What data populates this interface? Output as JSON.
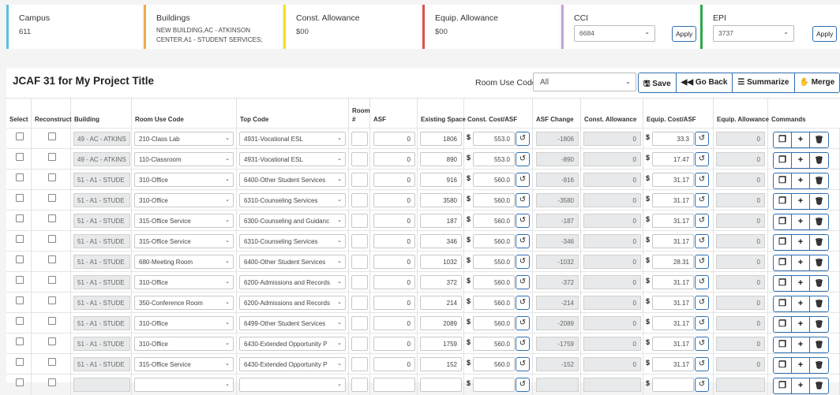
{
  "cards": {
    "campus": {
      "title": "Campus",
      "value": "611"
    },
    "buildings": {
      "title": "Buildings",
      "value": "NEW BUILDING,AC - ATKINSON CENTER,A1 - STUDENT SERVICES;"
    },
    "const_allowance": {
      "title": "Const. Allowance",
      "value": "$00"
    },
    "equip_allowance": {
      "title": "Equip. Allowance",
      "value": "$00"
    },
    "cci": {
      "title": "CCI",
      "value": "6684",
      "apply": "Apply"
    },
    "epi": {
      "title": "EPI",
      "value": "3737",
      "apply": "Apply"
    }
  },
  "colors": {
    "campus": "#5bc0de",
    "buildings": "#f0ad4e",
    "const": "#f7e017",
    "equip": "#d9534f",
    "cci": "#c7a0d8",
    "epi": "#2ea84a",
    "accent": "#2f6fb0"
  },
  "panel": {
    "title": "JCAF 31 for My Project Title",
    "room_use_label": "Room Use Code:",
    "room_use_value": "All",
    "buttons": {
      "save": "🖫 Save",
      "go_back": "◀◀ Go Back",
      "summarize": "☰ Summarize",
      "merge": "✋ Merge"
    }
  },
  "columns": {
    "select": "Select",
    "reconstruct": "Reconstruct",
    "building": "Building",
    "room_use": "Room Use Code",
    "top_code": "Top Code",
    "room_num": "Room #",
    "asf": "ASF",
    "existing": "Existing Space",
    "const_cost": "Const. Cost/ASF",
    "asf_change": "ASF Change",
    "const_allow": "Const. Allowance",
    "equip_cost": "Equip. Cost/ASF",
    "equip_allow": "Equip. Allowance",
    "commands": "Commands"
  },
  "icons": {
    "dollar": "$",
    "undo": "↺",
    "chevron": "⌄",
    "copy": "❐",
    "plus": "+",
    "delete": "🗑"
  },
  "rows": [
    {
      "building": "49 - AC - ATKINS",
      "room_use": "210-Class Lab",
      "top_code": "4931-Vocational ESL",
      "asf": "0",
      "existing": "1806",
      "const_cost": "553.0",
      "asf_change": "-1806",
      "const_allow": "0",
      "equip_cost": "33.3",
      "equip_allow": "0"
    },
    {
      "building": "49 - AC - ATKINS",
      "room_use": "110-Classroom",
      "top_code": "4931-Vocational ESL",
      "asf": "0",
      "existing": "890",
      "const_cost": "553.0",
      "asf_change": "-890",
      "const_allow": "0",
      "equip_cost": "17.47",
      "equip_allow": "0"
    },
    {
      "building": "51 - A1 - STUDE",
      "room_use": "310-Office",
      "top_code": "6400-Other Student Services",
      "asf": "0",
      "existing": "916",
      "const_cost": "560.0",
      "asf_change": "-916",
      "const_allow": "0",
      "equip_cost": "31.17",
      "equip_allow": "0"
    },
    {
      "building": "51 - A1 - STUDE",
      "room_use": "310-Office",
      "top_code": "6310-Counseling Services",
      "asf": "0",
      "existing": "3580",
      "const_cost": "560.0",
      "asf_change": "-3580",
      "const_allow": "0",
      "equip_cost": "31.17",
      "equip_allow": "0"
    },
    {
      "building": "51 - A1 - STUDE",
      "room_use": "315-Office Service",
      "top_code": "6300-Counseling and Guidanc",
      "asf": "0",
      "existing": "187",
      "const_cost": "560.0",
      "asf_change": "-187",
      "const_allow": "0",
      "equip_cost": "31.17",
      "equip_allow": "0"
    },
    {
      "building": "51 - A1 - STUDE",
      "room_use": "315-Office Service",
      "top_code": "6310-Counseling Services",
      "asf": "0",
      "existing": "346",
      "const_cost": "560.0",
      "asf_change": "-346",
      "const_allow": "0",
      "equip_cost": "31.17",
      "equip_allow": "0"
    },
    {
      "building": "51 - A1 - STUDE",
      "room_use": "680-Meeting Room",
      "top_code": "6400-Other Student Services",
      "asf": "0",
      "existing": "1032",
      "const_cost": "550.0",
      "asf_change": "-1032",
      "const_allow": "0",
      "equip_cost": "28.31",
      "equip_allow": "0"
    },
    {
      "building": "51 - A1 - STUDE",
      "room_use": "310-Office",
      "top_code": "6200-Admissions and Records",
      "asf": "0",
      "existing": "372",
      "const_cost": "560.0",
      "asf_change": "-372",
      "const_allow": "0",
      "equip_cost": "31.17",
      "equip_allow": "0"
    },
    {
      "building": "51 - A1 - STUDE",
      "room_use": "350-Conference Room",
      "top_code": "6200-Admissions and Records",
      "asf": "0",
      "existing": "214",
      "const_cost": "560.0",
      "asf_change": "-214",
      "const_allow": "0",
      "equip_cost": "31.17",
      "equip_allow": "0"
    },
    {
      "building": "51 - A1 - STUDE",
      "room_use": "310-Office",
      "top_code": "6499-Other Student Services",
      "asf": "0",
      "existing": "2089",
      "const_cost": "560.0",
      "asf_change": "-2089",
      "const_allow": "0",
      "equip_cost": "31.17",
      "equip_allow": "0"
    },
    {
      "building": "51 - A1 - STUDE",
      "room_use": "310-Office",
      "top_code": "6430-Extended Opportunity P",
      "asf": "0",
      "existing": "1759",
      "const_cost": "560.0",
      "asf_change": "-1759",
      "const_allow": "0",
      "equip_cost": "31.17",
      "equip_allow": "0"
    },
    {
      "building": "51 - A1 - STUDE",
      "room_use": "315-Office Service",
      "top_code": "6430-Extended Opportunity P",
      "asf": "0",
      "existing": "152",
      "const_cost": "560.0",
      "asf_change": "-152",
      "const_allow": "0",
      "equip_cost": "31.17",
      "equip_allow": "0"
    },
    {
      "building": "",
      "room_use": "",
      "top_code": "",
      "asf": "",
      "existing": "",
      "const_cost": "",
      "asf_change": "",
      "const_allow": "",
      "equip_cost": "",
      "equip_allow": ""
    }
  ]
}
